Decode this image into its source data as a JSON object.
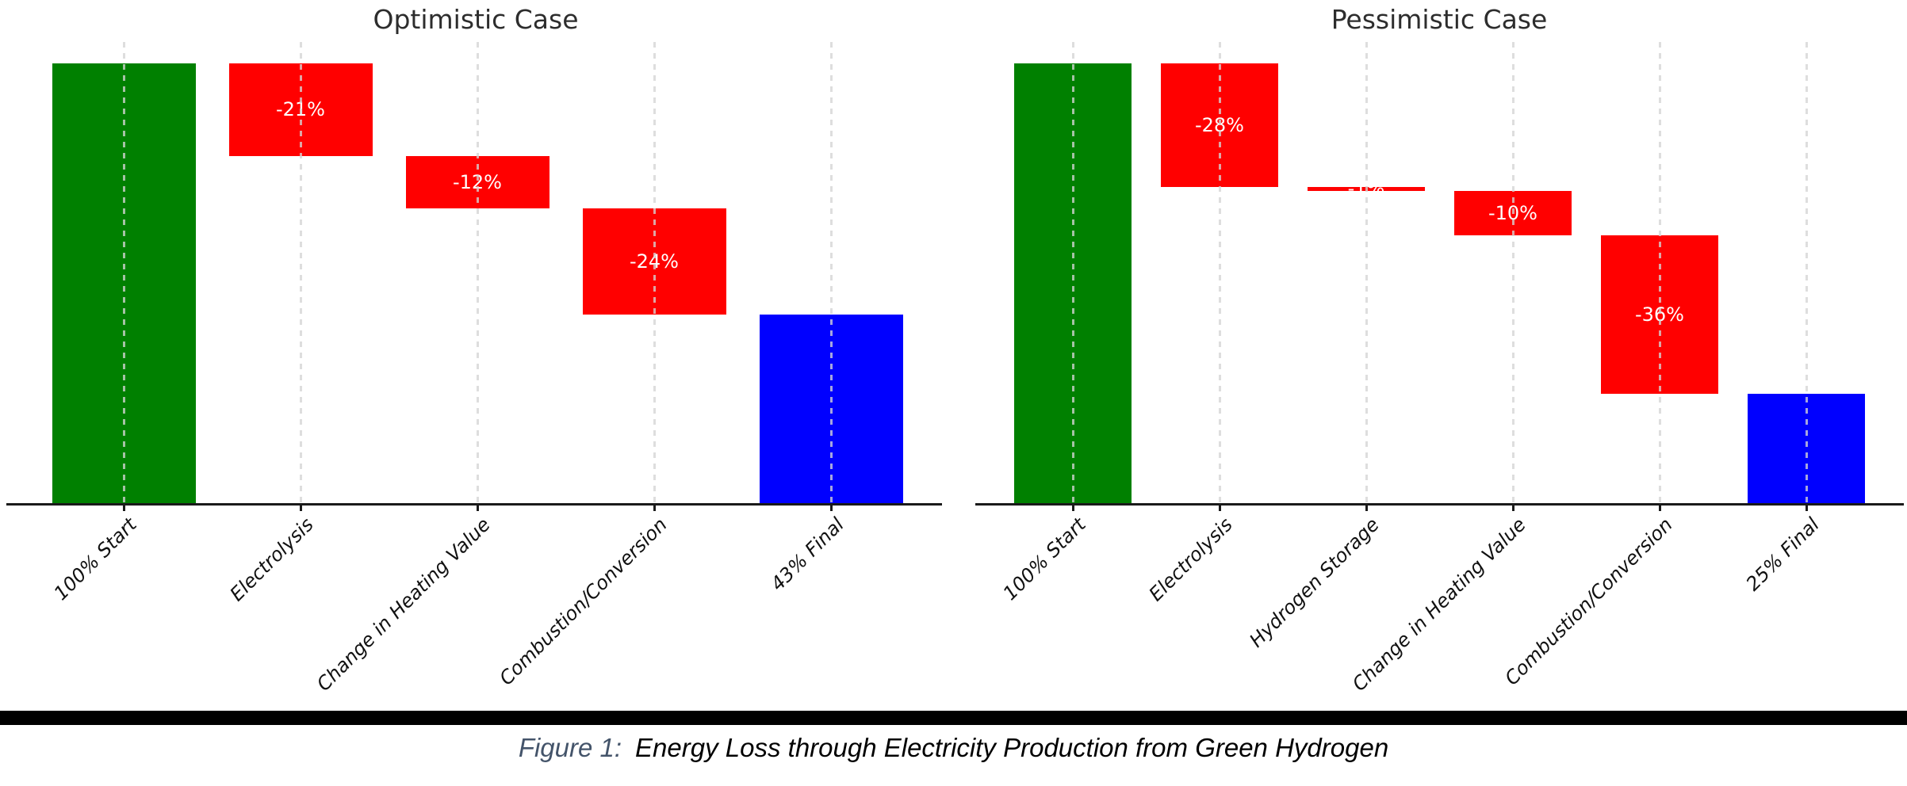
{
  "figure": {
    "caption_prefix": "Figure 1:",
    "caption_text": "Energy Loss through Electricity Production from Green Hydrogen"
  },
  "colors": {
    "start_bar": "#008000",
    "loss_bar": "#ff0000",
    "final_bar": "#0000ff",
    "grid_line": "#d4d4d4",
    "axis_line": "#1a1a1a",
    "bar_label_text": "#ffffff",
    "title_text": "#2d2d2d",
    "tick_label_text": "#111111",
    "caption_prefix_text": "#44546a",
    "caption_body_text": "#000000",
    "divider_bar": "#000000"
  },
  "chart_data": [
    {
      "type": "bar",
      "subtype": "waterfall",
      "title": "Optimistic Case",
      "categories": [
        "100% Start",
        "Electrolysis",
        "Change in Heating Value",
        "Combustion/Conversion",
        "43% Final"
      ],
      "steps": [
        {
          "category": "100% Start",
          "kind": "start",
          "value": 100,
          "bar_label": ""
        },
        {
          "category": "Electrolysis",
          "kind": "loss",
          "value": -21,
          "bar_label": "-21%"
        },
        {
          "category": "Change in Heating Value",
          "kind": "loss",
          "value": -12,
          "bar_label": "-12%"
        },
        {
          "category": "Combustion/Conversion",
          "kind": "loss",
          "value": -24,
          "bar_label": "-24%"
        },
        {
          "category": "43% Final",
          "kind": "final",
          "value": 43,
          "bar_label": ""
        }
      ],
      "running_levels": [
        100,
        79,
        67,
        43
      ],
      "ylim": [
        0,
        105
      ],
      "grid": "vertical dashed line at each category, drawn over bars",
      "legend": "none",
      "xlabel": "",
      "ylabel": ""
    },
    {
      "type": "bar",
      "subtype": "waterfall",
      "title": "Pessimistic Case",
      "categories": [
        "100% Start",
        "Electrolysis",
        "Hydrogen Storage",
        "Change in Heating Value",
        "Combustion/Conversion",
        "25% Final"
      ],
      "steps": [
        {
          "category": "100% Start",
          "kind": "start",
          "value": 100,
          "bar_label": ""
        },
        {
          "category": "Electrolysis",
          "kind": "loss",
          "value": -28,
          "bar_label": "-28%"
        },
        {
          "category": "Hydrogen Storage",
          "kind": "loss",
          "value": -1,
          "bar_label": "-1%"
        },
        {
          "category": "Change in Heating Value",
          "kind": "loss",
          "value": -10,
          "bar_label": "-10%"
        },
        {
          "category": "Combustion/Conversion",
          "kind": "loss",
          "value": -36,
          "bar_label": "-36%"
        },
        {
          "category": "25% Final",
          "kind": "final",
          "value": 25,
          "bar_label": ""
        }
      ],
      "running_levels": [
        100,
        72,
        71,
        61,
        25
      ],
      "ylim": [
        0,
        105
      ],
      "grid": "vertical dashed line at each category, drawn over bars",
      "legend": "none",
      "xlabel": "",
      "ylabel": ""
    }
  ]
}
